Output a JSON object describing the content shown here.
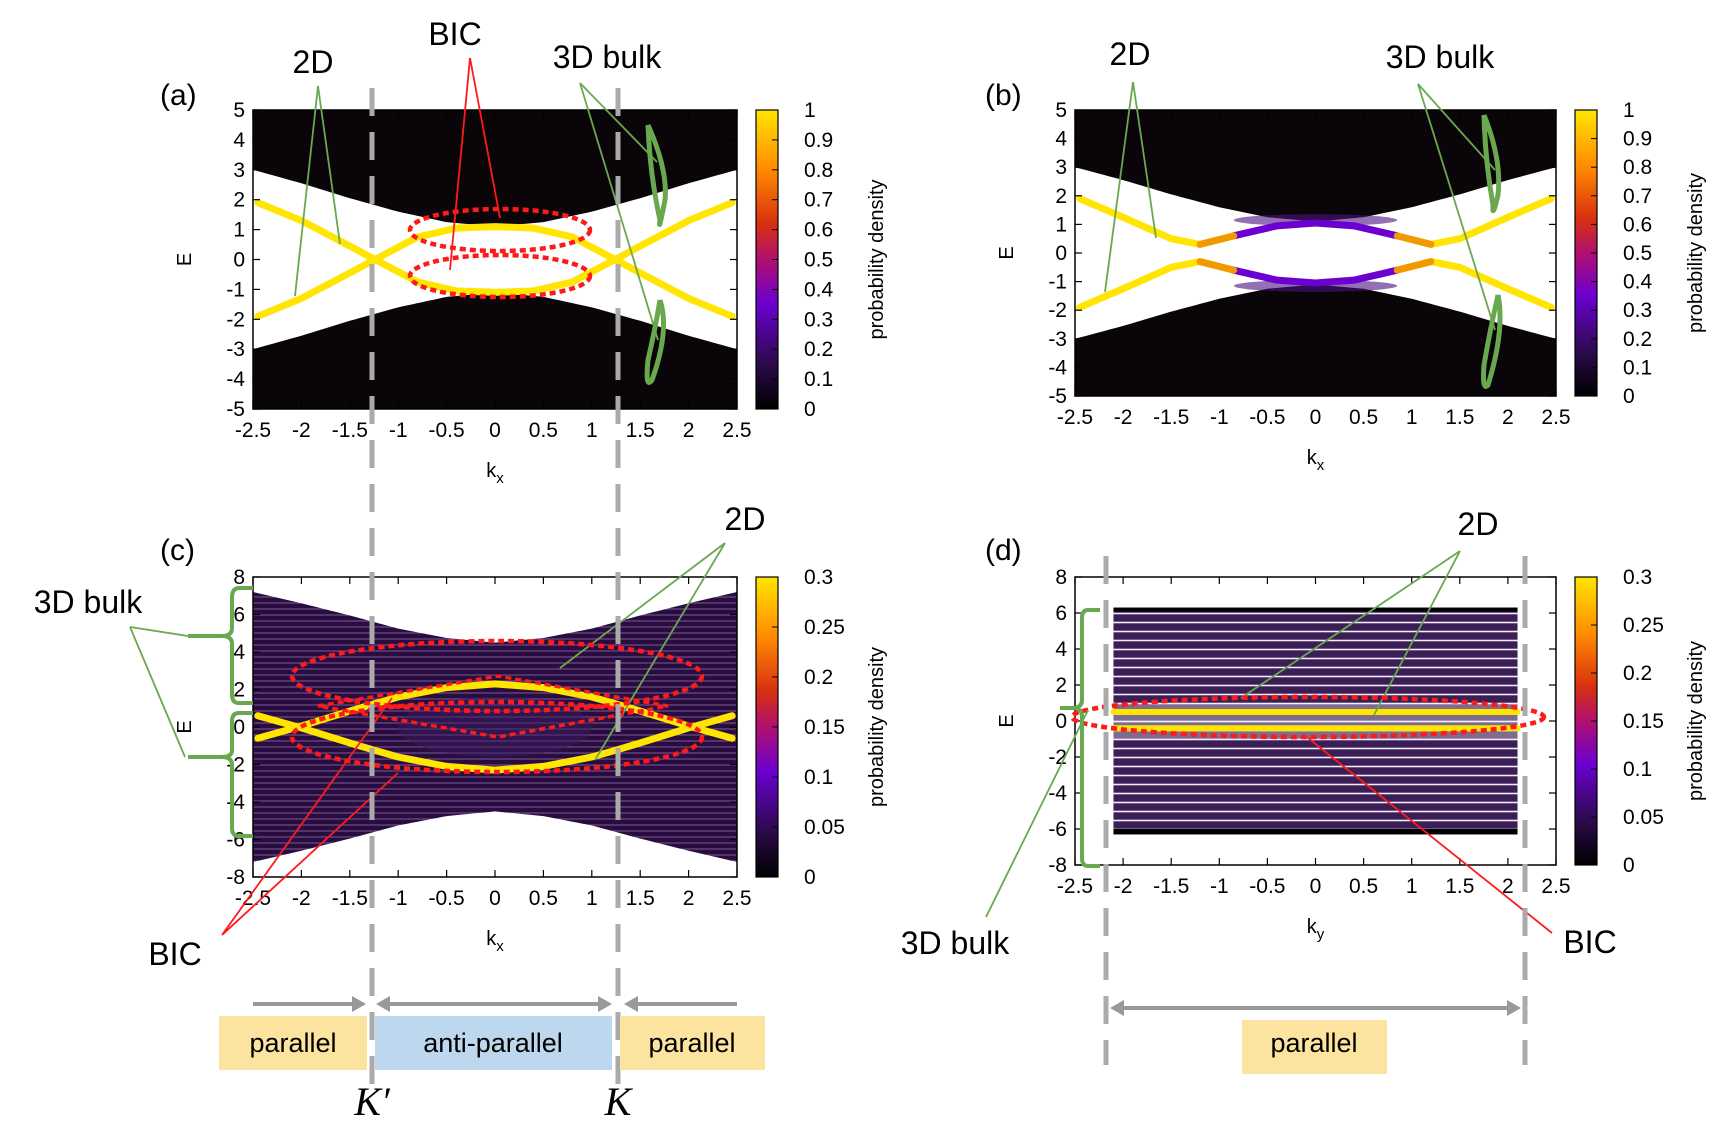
{
  "panels": [
    {
      "id": "a",
      "label": "(a)",
      "xlabel": "kx",
      "xlabel_main": "k",
      "xlabel_sub": "x",
      "ylabel": "E",
      "xlim": [
        -2.5,
        2.5
      ],
      "ylim": [
        -5,
        5
      ],
      "xticks": [
        "-2.5",
        "-2",
        "-1.5",
        "-1",
        "-0.5",
        "0",
        "0.5",
        "1",
        "1.5",
        "2",
        "2.5"
      ],
      "yticks": [
        "-5",
        "-4",
        "-3",
        "-2",
        "-1",
        "0",
        "1",
        "2",
        "3",
        "4",
        "5"
      ],
      "colorbar": {
        "label": "probability density",
        "range": [
          0,
          1
        ],
        "ticks": [
          "0",
          "0.1",
          "0.2",
          "0.3",
          "0.4",
          "0.5",
          "0.6",
          "0.7",
          "0.8",
          "0.9",
          "1"
        ]
      },
      "annotations": [
        "2D",
        "BIC",
        "3D bulk"
      ]
    },
    {
      "id": "b",
      "label": "(b)",
      "xlabel": "kx",
      "xlabel_main": "k",
      "xlabel_sub": "x",
      "ylabel": "E",
      "xlim": [
        -2.5,
        2.5
      ],
      "ylim": [
        -5,
        5
      ],
      "xticks": [
        "-2.5",
        "-2",
        "-1.5",
        "-1",
        "-0.5",
        "0",
        "0.5",
        "1",
        "1.5",
        "2",
        "2.5"
      ],
      "yticks": [
        "-5",
        "-4",
        "-3",
        "-2",
        "-1",
        "0",
        "1",
        "2",
        "3",
        "4",
        "5"
      ],
      "colorbar": {
        "label": "probability density",
        "range": [
          0,
          1
        ],
        "ticks": [
          "0",
          "0.1",
          "0.2",
          "0.3",
          "0.4",
          "0.5",
          "0.6",
          "0.7",
          "0.8",
          "0.9",
          "1"
        ]
      },
      "annotations": [
        "2D",
        "3D bulk"
      ]
    },
    {
      "id": "c",
      "label": "(c)",
      "xlabel": "kx",
      "xlabel_main": "k",
      "xlabel_sub": "x",
      "ylabel": "E",
      "xlim": [
        -2.5,
        2.5
      ],
      "ylim": [
        -8,
        8
      ],
      "xticks": [
        "-2.5",
        "-2",
        "-1.5",
        "-1",
        "-0.5",
        "0",
        "0.5",
        "1",
        "1.5",
        "2",
        "2.5"
      ],
      "yticks": [
        "-8",
        "-6",
        "-4",
        "-2",
        "0",
        "2",
        "4",
        "6",
        "8"
      ],
      "colorbar": {
        "label": "probability density",
        "range": [
          0,
          0.3
        ],
        "ticks": [
          "0",
          "0.05",
          "0.1",
          "0.15",
          "0.2",
          "0.25",
          "0.3"
        ]
      },
      "annotations": [
        "3D bulk",
        "2D",
        "BIC"
      ]
    },
    {
      "id": "d",
      "label": "(d)",
      "xlabel": "ky",
      "xlabel_main": "k",
      "xlabel_sub": "y",
      "ylabel": "E",
      "xlim": [
        -2.5,
        2.5
      ],
      "ylim": [
        -8,
        8
      ],
      "xticks": [
        "-2.5",
        "-2",
        "-1.5",
        "-1",
        "-0.5",
        "0",
        "0.5",
        "1",
        "1.5",
        "2",
        "2.5"
      ],
      "yticks": [
        "-8",
        "-6",
        "-4",
        "-2",
        "0",
        "2",
        "4",
        "6",
        "8"
      ],
      "colorbar": {
        "label": "probability density",
        "range": [
          0,
          0.3
        ],
        "ticks": [
          "0",
          "0.05",
          "0.1",
          "0.15",
          "0.2",
          "0.25",
          "0.3"
        ]
      },
      "annotations": [
        "2D",
        "3D bulk",
        "BIC"
      ]
    }
  ],
  "chart_data": [
    {
      "type": "heatmap",
      "panel": "a",
      "title": "",
      "xlabel": "kx",
      "ylabel": "E",
      "series": [
        {
          "name": "2D surface band (upper-left to lower-right)",
          "value": 1.0,
          "x": [
            -2.45,
            -2.0,
            -1.5,
            -1.24,
            -0.8,
            -0.4,
            0,
            0.4,
            0.8,
            1.24,
            1.5,
            2.0,
            2.45
          ],
          "y": [
            1.9,
            1.3,
            0.45,
            0.0,
            -0.75,
            -1.05,
            -1.1,
            -1.05,
            -0.75,
            0.0,
            -0.45,
            -1.3,
            -1.9
          ]
        },
        {
          "name": "2D surface band (lower-left to upper-right)",
          "value": 1.0,
          "x": [
            -2.45,
            -2.0,
            -1.5,
            -1.24,
            -0.8,
            -0.4,
            0,
            0.4,
            0.8,
            1.24,
            1.5,
            2.0,
            2.45
          ],
          "y": [
            -1.9,
            -1.3,
            -0.45,
            0.0,
            0.75,
            1.05,
            1.1,
            1.05,
            0.75,
            0.0,
            0.45,
            1.3,
            1.9
          ]
        },
        {
          "name": "3D bulk band edge (upper)",
          "x": [
            -2.5,
            -2,
            -1.5,
            -1,
            -0.5,
            0,
            0.5,
            1,
            1.5,
            2,
            2.5
          ],
          "y": [
            3.0,
            2.55,
            2.05,
            1.6,
            1.25,
            1.1,
            1.25,
            1.6,
            2.05,
            2.55,
            3.0
          ]
        },
        {
          "name": "3D bulk band top",
          "x": [
            -2.5,
            0,
            2.5
          ],
          "y": [
            5,
            5,
            5
          ]
        },
        {
          "name": "3D bulk band edge (lower)",
          "x": [
            -2.5,
            -2,
            -1.5,
            -1,
            -0.5,
            0,
            0.5,
            1,
            1.5,
            2,
            2.5
          ],
          "y": [
            -3.0,
            -2.55,
            -2.05,
            -1.6,
            -1.25,
            -1.1,
            -1.25,
            -1.6,
            -2.05,
            -2.55,
            -3.0
          ]
        }
      ],
      "vlines": [
        -1.24,
        1.24
      ]
    },
    {
      "type": "heatmap",
      "panel": "b",
      "title": "",
      "xlabel": "kx",
      "ylabel": "E",
      "series": [
        {
          "name": "2D surface band (upper)",
          "value": 1.0,
          "x": [
            -2.45,
            -2.0,
            -1.5,
            -1.2,
            -0.85
          ],
          "y": [
            1.9,
            1.25,
            0.5,
            0.3,
            0.6
          ]
        },
        {
          "name": "2D surface band (upper)",
          "value": 1.0,
          "x": [
            0.85,
            1.2,
            1.5,
            2.0,
            2.45
          ],
          "y": [
            0.6,
            0.3,
            0.5,
            1.25,
            1.9
          ]
        },
        {
          "name": "2D surface band (lower)",
          "value": 1.0,
          "x": [
            -2.45,
            -2.0,
            -1.5,
            -1.2,
            -0.85
          ],
          "y": [
            -1.9,
            -1.25,
            -0.5,
            -0.3,
            -0.6
          ]
        },
        {
          "name": "2D surface band (lower)",
          "value": 1.0,
          "x": [
            0.85,
            1.2,
            1.5,
            2.0,
            2.45
          ],
          "y": [
            -0.6,
            -0.3,
            -0.5,
            -1.25,
            -1.9
          ]
        },
        {
          "name": "hybridized state (upper)",
          "value": 0.35,
          "x": [
            -0.85,
            -0.4,
            0,
            0.4,
            0.85
          ],
          "y": [
            0.6,
            0.95,
            1.05,
            0.95,
            0.6
          ]
        },
        {
          "name": "hybridized state (lower)",
          "value": 0.35,
          "x": [
            -0.85,
            -0.4,
            0,
            0.4,
            0.85
          ],
          "y": [
            -0.6,
            -0.95,
            -1.05,
            -0.95,
            -0.6
          ]
        }
      ]
    },
    {
      "type": "heatmap",
      "panel": "c",
      "title": "",
      "xlabel": "kx",
      "ylabel": "E",
      "series": [
        {
          "name": "2D surface band (outer upper)",
          "value": 0.3,
          "x": [
            -2.45,
            -2.0,
            -1.5,
            -1.24,
            -1.0,
            -0.5,
            0,
            0.5,
            1.0,
            1.24,
            1.5,
            2.0,
            2.45
          ],
          "y": [
            -0.6,
            0.05,
            0.85,
            1.25,
            1.6,
            2.1,
            2.3,
            2.1,
            1.6,
            1.25,
            0.85,
            0.05,
            -0.6
          ]
        },
        {
          "name": "2D surface band (outer lower)",
          "value": 0.3,
          "x": [
            -2.45,
            -2.0,
            -1.5,
            -1.24,
            -1.0,
            -0.5,
            0,
            0.5,
            1.0,
            1.24,
            1.5,
            2.0,
            2.45
          ],
          "y": [
            0.6,
            -0.05,
            -0.85,
            -1.25,
            -1.6,
            -2.1,
            -2.3,
            -2.1,
            -1.6,
            -1.25,
            -0.85,
            -0.05,
            0.6
          ]
        },
        {
          "name": "3D bulk band edge (upper)",
          "x": [
            -2.5,
            -2,
            -1.5,
            -1,
            -0.5,
            0,
            0.5,
            1,
            1.5,
            2,
            2.5
          ],
          "y": [
            7.2,
            6.6,
            5.95,
            5.25,
            4.75,
            4.5,
            4.75,
            5.25,
            5.95,
            6.6,
            7.2
          ]
        },
        {
          "name": "3D bulk band edge (lower)",
          "x": [
            -2.5,
            -2,
            -1.5,
            -1,
            -0.5,
            0,
            0.5,
            1,
            1.5,
            2,
            2.5
          ],
          "y": [
            -7.2,
            -6.6,
            -5.95,
            -5.25,
            -4.75,
            -4.5,
            -4.75,
            -5.25,
            -5.95,
            -6.6,
            -7.2
          ]
        }
      ],
      "vlines": [
        -1.24,
        1.24
      ]
    },
    {
      "type": "heatmap",
      "panel": "d",
      "title": "",
      "xlabel": "ky",
      "ylabel": "E",
      "series": [
        {
          "name": "2D surface band (upper)",
          "value": 0.3,
          "x": [
            -2.1,
            2.1
          ],
          "y": [
            0.5,
            0.5
          ]
        },
        {
          "name": "2D surface band (lower)",
          "value": 0.3,
          "x": [
            -2.1,
            2.1
          ],
          "y": [
            -0.4,
            -0.4
          ]
        },
        {
          "name": "3D bulk region",
          "x": [
            -2.1,
            2.1
          ],
          "y": [
            -6.3,
            6.3
          ]
        }
      ],
      "vlines": [
        -2.1,
        2.1
      ]
    }
  ],
  "regions": {
    "left": "parallel",
    "middle": "anti-parallel",
    "right": "parallel",
    "d": "parallel"
  },
  "kpoints": {
    "kprime": "K′",
    "k": "K"
  },
  "colors": {
    "band_black": "#0a0508",
    "surface_yellow": "#f5d000",
    "bic_red": "#ff1a1a",
    "annotation_green": "#6aa84f",
    "dashed_gray": "#aaaaaa",
    "parallel_box": "#fde3a0",
    "antiparallel_box": "#bdd7ee"
  }
}
